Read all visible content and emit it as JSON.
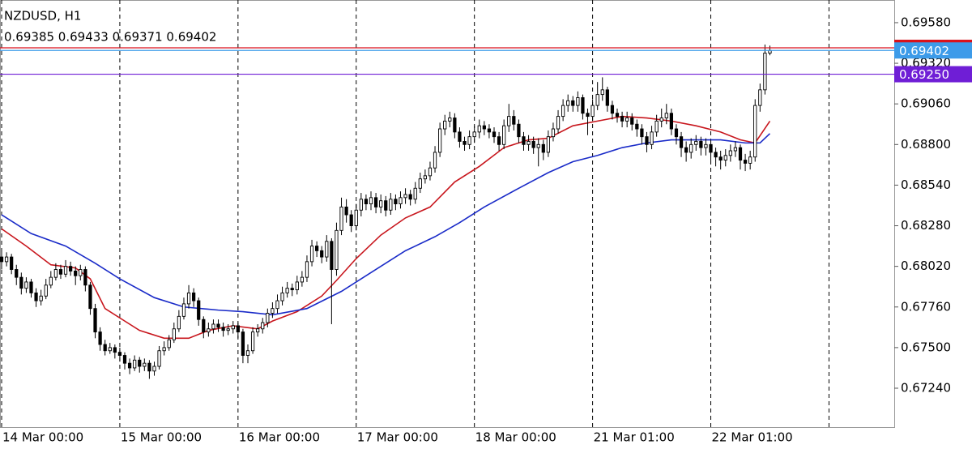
{
  "chart_data": {
    "type": "candlestick",
    "title": "NZDUSD, H1",
    "subtitle": "0.69385 0.69433 0.69371 0.69402",
    "xlim": [
      -0.33,
      181.25
    ],
    "ylim": [
      0.66991,
      0.69725
    ],
    "yticks": [
      {
        "value": 0.6958,
        "label": "0.69580"
      },
      {
        "value": 0.6932,
        "label": "0.69320"
      },
      {
        "value": 0.6906,
        "label": "0.69060"
      },
      {
        "value": 0.688,
        "label": "0.68800"
      },
      {
        "value": 0.6854,
        "label": "0.68540"
      },
      {
        "value": 0.6828,
        "label": "0.68280"
      },
      {
        "value": 0.6802,
        "label": "0.68020"
      },
      {
        "value": 0.6776,
        "label": "0.67760"
      },
      {
        "value": 0.675,
        "label": "0.67500"
      },
      {
        "value": 0.6724,
        "label": "0.67240"
      }
    ],
    "xticks": [
      {
        "value": 0,
        "label": "14 Mar 00:00"
      },
      {
        "value": 24,
        "label": "15 Mar 00:00"
      },
      {
        "value": 48,
        "label": "16 Mar 00:00"
      },
      {
        "value": 72,
        "label": "17 Mar 00:00"
      },
      {
        "value": 96,
        "label": "18 Mar 00:00"
      },
      {
        "value": 120,
        "label": "21 Mar 01:00"
      },
      {
        "value": 144,
        "label": "22 Mar 01:00"
      },
      {
        "value": 168,
        "label": null
      }
    ],
    "open": [
      0.6808,
      0.6805,
      0.6808,
      0.68,
      0.6795,
      0.6788,
      0.6792,
      0.6785,
      0.678,
      0.6783,
      0.679,
      0.6795,
      0.68,
      0.6797,
      0.6802,
      0.6799,
      0.6796,
      0.68,
      0.679,
      0.6775,
      0.676,
      0.6752,
      0.6748,
      0.675,
      0.6747,
      0.6745,
      0.674,
      0.6737,
      0.6742,
      0.6738,
      0.674,
      0.6735,
      0.6738,
      0.6748,
      0.675,
      0.6755,
      0.6762,
      0.677,
      0.6778,
      0.6785,
      0.678,
      0.6768,
      0.676,
      0.6762,
      0.6765,
      0.6763,
      0.6761,
      0.6762,
      0.6764,
      0.676,
      0.6745,
      0.6748,
      0.676,
      0.6762,
      0.6766,
      0.6772,
      0.6775,
      0.678,
      0.6785,
      0.6788,
      0.6787,
      0.6792,
      0.6795,
      0.6805,
      0.6815,
      0.6812,
      0.6808,
      0.6818,
      0.68,
      0.6825,
      0.684,
      0.6835,
      0.6828,
      0.6838,
      0.6845,
      0.6842,
      0.6846,
      0.684,
      0.6844,
      0.6838,
      0.6845,
      0.6842,
      0.6846,
      0.6848,
      0.6845,
      0.6852,
      0.6858,
      0.686,
      0.6865,
      0.6875,
      0.689,
      0.6895,
      0.6897,
      0.6888,
      0.6882,
      0.688,
      0.6885,
      0.6888,
      0.6892,
      0.689,
      0.6888,
      0.6885,
      0.688,
      0.6892,
      0.6898,
      0.6893,
      0.6885,
      0.688,
      0.6882,
      0.6878,
      0.688,
      0.6875,
      0.6885,
      0.689,
      0.6898,
      0.6905,
      0.6908,
      0.6905,
      0.691,
      0.69,
      0.6898,
      0.6905,
      0.6912,
      0.6915,
      0.6905,
      0.69,
      0.6898,
      0.6895,
      0.6897,
      0.6893,
      0.689,
      0.6885,
      0.688,
      0.6888,
      0.6895,
      0.6897,
      0.69,
      0.689,
      0.6885,
      0.6878,
      0.6875,
      0.688,
      0.6882,
      0.6878,
      0.688,
      0.6875,
      0.6872,
      0.687,
      0.6873,
      0.6876,
      0.6878,
      0.687,
      0.6868,
      0.6872,
      0.6905,
      0.6915,
      0.69385
    ],
    "high": [
      0.6812,
      0.6811,
      0.681,
      0.6803,
      0.6798,
      0.6795,
      0.6794,
      0.6788,
      0.6787,
      0.6794,
      0.6799,
      0.6804,
      0.6803,
      0.6806,
      0.6805,
      0.6802,
      0.6803,
      0.6802,
      0.6792,
      0.6778,
      0.6763,
      0.6755,
      0.6753,
      0.6752,
      0.675,
      0.6747,
      0.6743,
      0.6745,
      0.6744,
      0.6743,
      0.6742,
      0.6741,
      0.6751,
      0.6754,
      0.6758,
      0.6766,
      0.6774,
      0.6782,
      0.679,
      0.6788,
      0.6782,
      0.677,
      0.6766,
      0.6768,
      0.6768,
      0.6766,
      0.6765,
      0.6767,
      0.6766,
      0.6762,
      0.6752,
      0.6763,
      0.6765,
      0.6769,
      0.6775,
      0.6779,
      0.6784,
      0.6789,
      0.6792,
      0.6791,
      0.6796,
      0.6799,
      0.6809,
      0.6819,
      0.6818,
      0.6815,
      0.6822,
      0.682,
      0.683,
      0.6846,
      0.6845,
      0.6838,
      0.6842,
      0.6849,
      0.6848,
      0.685,
      0.6849,
      0.6848,
      0.6847,
      0.6849,
      0.6848,
      0.685,
      0.6852,
      0.6851,
      0.6856,
      0.6862,
      0.6864,
      0.6869,
      0.6879,
      0.6894,
      0.6899,
      0.6901,
      0.69,
      0.6891,
      0.6885,
      0.6889,
      0.6892,
      0.6896,
      0.6895,
      0.6893,
      0.6891,
      0.6888,
      0.6896,
      0.6906,
      0.6902,
      0.6896,
      0.6888,
      0.6886,
      0.6885,
      0.6884,
      0.6883,
      0.6889,
      0.6894,
      0.6902,
      0.6909,
      0.6912,
      0.6911,
      0.6914,
      0.6912,
      0.6903,
      0.6909,
      0.692,
      0.6923,
      0.6917,
      0.6908,
      0.6903,
      0.6901,
      0.6901,
      0.69,
      0.6896,
      0.6893,
      0.6888,
      0.6892,
      0.6899,
      0.6903,
      0.6906,
      0.6903,
      0.6893,
      0.6888,
      0.6882,
      0.6884,
      0.6886,
      0.6885,
      0.6884,
      0.6883,
      0.6878,
      0.6876,
      0.6877,
      0.688,
      0.6882,
      0.688,
      0.6874,
      0.6876,
      0.6909,
      0.6919,
      0.6944,
      0.69433
    ],
    "low": [
      0.68,
      0.6802,
      0.6797,
      0.679,
      0.6784,
      0.6785,
      0.6782,
      0.6776,
      0.6777,
      0.6781,
      0.6788,
      0.6793,
      0.6794,
      0.6795,
      0.6796,
      0.679,
      0.6793,
      0.6786,
      0.6771,
      0.6756,
      0.6748,
      0.6745,
      0.6746,
      0.6743,
      0.6741,
      0.6736,
      0.6733,
      0.6735,
      0.6734,
      0.6735,
      0.673,
      0.6732,
      0.6736,
      0.6745,
      0.6748,
      0.6753,
      0.676,
      0.6768,
      0.6775,
      0.6776,
      0.6764,
      0.6756,
      0.6757,
      0.6759,
      0.676,
      0.6757,
      0.6758,
      0.6759,
      0.6756,
      0.674,
      0.674,
      0.6746,
      0.6757,
      0.6759,
      0.6763,
      0.6769,
      0.6772,
      0.6777,
      0.6782,
      0.6783,
      0.6784,
      0.6789,
      0.6792,
      0.6802,
      0.6808,
      0.6804,
      0.6805,
      0.6765,
      0.6796,
      0.6822,
      0.683,
      0.6824,
      0.6825,
      0.6834,
      0.6838,
      0.6838,
      0.6836,
      0.6836,
      0.6834,
      0.6835,
      0.6838,
      0.6839,
      0.6842,
      0.6841,
      0.6842,
      0.6849,
      0.6855,
      0.6857,
      0.6862,
      0.6872,
      0.6886,
      0.6891,
      0.6884,
      0.6878,
      0.6876,
      0.6877,
      0.6881,
      0.6884,
      0.6886,
      0.6884,
      0.6881,
      0.6876,
      0.6877,
      0.6888,
      0.6889,
      0.6881,
      0.6876,
      0.6876,
      0.6874,
      0.6866,
      0.687,
      0.6872,
      0.6882,
      0.6887,
      0.6895,
      0.6901,
      0.6901,
      0.6901,
      0.6896,
      0.6886,
      0.6895,
      0.6902,
      0.6908,
      0.6901,
      0.6896,
      0.6894,
      0.6891,
      0.6891,
      0.6889,
      0.6885,
      0.688,
      0.6875,
      0.6877,
      0.6885,
      0.6891,
      0.6893,
      0.6886,
      0.688,
      0.6872,
      0.6869,
      0.6871,
      0.6876,
      0.6873,
      0.6873,
      0.6868,
      0.6866,
      0.6864,
      0.6866,
      0.6869,
      0.6872,
      0.6864,
      0.6863,
      0.6864,
      0.6869,
      0.6901,
      0.6912,
      0.69371
    ],
    "close": [
      0.6805,
      0.6808,
      0.68,
      0.6795,
      0.6788,
      0.6792,
      0.6785,
      0.678,
      0.6783,
      0.679,
      0.6795,
      0.68,
      0.6797,
      0.6802,
      0.6799,
      0.6796,
      0.68,
      0.679,
      0.6775,
      0.676,
      0.6752,
      0.6748,
      0.675,
      0.6747,
      0.6745,
      0.674,
      0.6737,
      0.6742,
      0.6738,
      0.674,
      0.6735,
      0.6738,
      0.6748,
      0.675,
      0.6755,
      0.6762,
      0.677,
      0.6778,
      0.6785,
      0.678,
      0.6768,
      0.676,
      0.6762,
      0.6765,
      0.6763,
      0.6761,
      0.6762,
      0.6764,
      0.676,
      0.6745,
      0.6748,
      0.676,
      0.6762,
      0.6766,
      0.6772,
      0.6775,
      0.678,
      0.6785,
      0.6788,
      0.6787,
      0.6792,
      0.6795,
      0.6805,
      0.6815,
      0.6812,
      0.6808,
      0.6818,
      0.68,
      0.6825,
      0.684,
      0.6835,
      0.6828,
      0.6838,
      0.6845,
      0.6842,
      0.6846,
      0.684,
      0.6844,
      0.6838,
      0.6845,
      0.6842,
      0.6846,
      0.6848,
      0.6845,
      0.6852,
      0.6858,
      0.686,
      0.6865,
      0.6875,
      0.689,
      0.6895,
      0.6897,
      0.6888,
      0.6882,
      0.688,
      0.6885,
      0.6888,
      0.6892,
      0.689,
      0.6888,
      0.6885,
      0.688,
      0.6892,
      0.6898,
      0.6893,
      0.6885,
      0.688,
      0.6882,
      0.6878,
      0.688,
      0.6875,
      0.6885,
      0.689,
      0.6898,
      0.6905,
      0.6908,
      0.6905,
      0.691,
      0.69,
      0.6898,
      0.6905,
      0.6912,
      0.6915,
      0.6905,
      0.69,
      0.6898,
      0.6895,
      0.6897,
      0.6893,
      0.689,
      0.6885,
      0.688,
      0.6888,
      0.6895,
      0.6897,
      0.69,
      0.689,
      0.6885,
      0.6878,
      0.6875,
      0.688,
      0.6882,
      0.6878,
      0.688,
      0.6875,
      0.6872,
      0.687,
      0.6873,
      0.6876,
      0.6878,
      0.687,
      0.6868,
      0.6872,
      0.6905,
      0.6915,
      0.69385,
      0.69402
    ],
    "overlays": [
      {
        "color": "#c8161d",
        "x": [
          0,
          5,
          10,
          15,
          18,
          21,
          25,
          28,
          33,
          38,
          42,
          47,
          52,
          55,
          60,
          65,
          68,
          72,
          77,
          82,
          87,
          92,
          97,
          102,
          107,
          111,
          116,
          121,
          126,
          131,
          136,
          141,
          146,
          150,
          153,
          156
        ],
        "values": [
          0.6826,
          0.6815,
          0.6803,
          0.6801,
          0.6794,
          0.6775,
          0.6767,
          0.6761,
          0.6756,
          0.6756,
          0.6761,
          0.6764,
          0.6762,
          0.6767,
          0.6773,
          0.6783,
          0.6793,
          0.6807,
          0.6822,
          0.6833,
          0.684,
          0.6856,
          0.6866,
          0.6878,
          0.6883,
          0.6884,
          0.6892,
          0.6895,
          0.6898,
          0.6897,
          0.6895,
          0.6892,
          0.6888,
          0.6883,
          0.6881,
          0.6895
        ]
      },
      {
        "color": "#1a2bc8",
        "x": [
          0,
          6,
          13,
          19,
          24,
          31,
          37,
          44,
          49,
          55,
          62,
          69,
          75,
          82,
          88,
          93,
          98,
          105,
          111,
          116,
          121,
          126,
          131,
          136,
          141,
          146,
          151,
          154,
          156
        ],
        "values": [
          0.6835,
          0.6823,
          0.6815,
          0.6804,
          0.6794,
          0.6782,
          0.6776,
          0.6774,
          0.6773,
          0.6771,
          0.6775,
          0.6786,
          0.6798,
          0.6812,
          0.6821,
          0.683,
          0.684,
          0.6852,
          0.6862,
          0.6869,
          0.6873,
          0.6878,
          0.6881,
          0.6883,
          0.6883,
          0.6883,
          0.6881,
          0.6881,
          0.6887
        ]
      }
    ],
    "levels": [
      {
        "value": 0.69419,
        "color": "#d9121c"
      },
      {
        "value": 0.69402,
        "label": "0.69402",
        "color": "#3d9be9"
      },
      {
        "value": 0.6925,
        "label": "0.69250",
        "color": "#6f1ed6"
      }
    ]
  }
}
